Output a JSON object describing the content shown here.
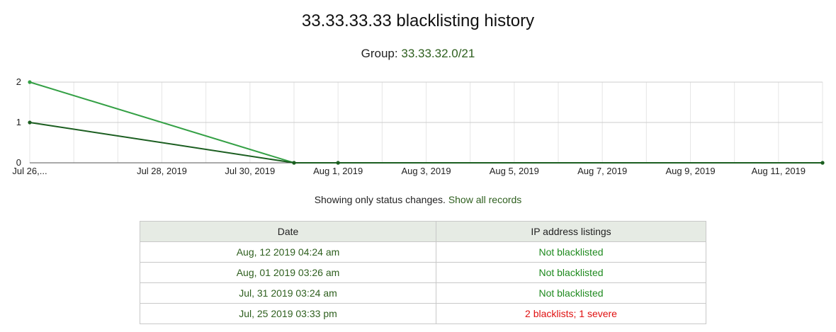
{
  "page": {
    "title": "33.33.33.33 blacklisting history",
    "group_label": "Group:",
    "group_value": "33.33.32.0/21"
  },
  "chart_data": {
    "type": "line",
    "x_tick_labels": [
      "Jul 26,...",
      "Jul 28, 2019",
      "Jul 30, 2019",
      "Aug 1, 2019",
      "Aug 3, 2019",
      "Aug 5, 2019",
      "Aug 7, 2019",
      "Aug 9, 2019",
      "Aug 11, 2019"
    ],
    "y_tick_labels": [
      "0",
      "1",
      "2"
    ],
    "xlim": [
      "2019-07-25",
      "2019-08-12"
    ],
    "ylim": [
      0,
      2
    ],
    "grid": true,
    "legend": "none",
    "series": [
      {
        "color": "#34a045",
        "points": [
          {
            "x": "2019-07-25",
            "y": 2
          },
          {
            "x": "2019-07-31",
            "y": 0
          },
          {
            "x": "2019-08-01",
            "y": 0
          },
          {
            "x": "2019-08-12",
            "y": 0
          }
        ]
      },
      {
        "color": "#1b5e20",
        "points": [
          {
            "x": "2019-07-25",
            "y": 1
          },
          {
            "x": "2019-07-31",
            "y": 0
          },
          {
            "x": "2019-08-01",
            "y": 0
          },
          {
            "x": "2019-08-12",
            "y": 0
          }
        ]
      }
    ]
  },
  "status": {
    "text": "Showing only status changes.",
    "link": "Show all records"
  },
  "table": {
    "headers": [
      "Date",
      "IP address listings"
    ],
    "rows": [
      {
        "date": "Aug, 12 2019 04:24 am",
        "listing": "Not blacklisted",
        "status": "ok"
      },
      {
        "date": "Aug, 01 2019 03:26 am",
        "listing": "Not blacklisted",
        "status": "ok"
      },
      {
        "date": "Jul, 31 2019 03:24 am",
        "listing": "Not blacklisted",
        "status": "ok"
      },
      {
        "date": "Jul, 25 2019 03:33 pm",
        "listing": "2 blacklists; 1 severe",
        "status": "bad"
      }
    ]
  },
  "colors": {
    "ok": "#1f8a1f",
    "bad": "#e01010",
    "link": "#2e5f1e",
    "header_bg": "#e6ebe4"
  }
}
